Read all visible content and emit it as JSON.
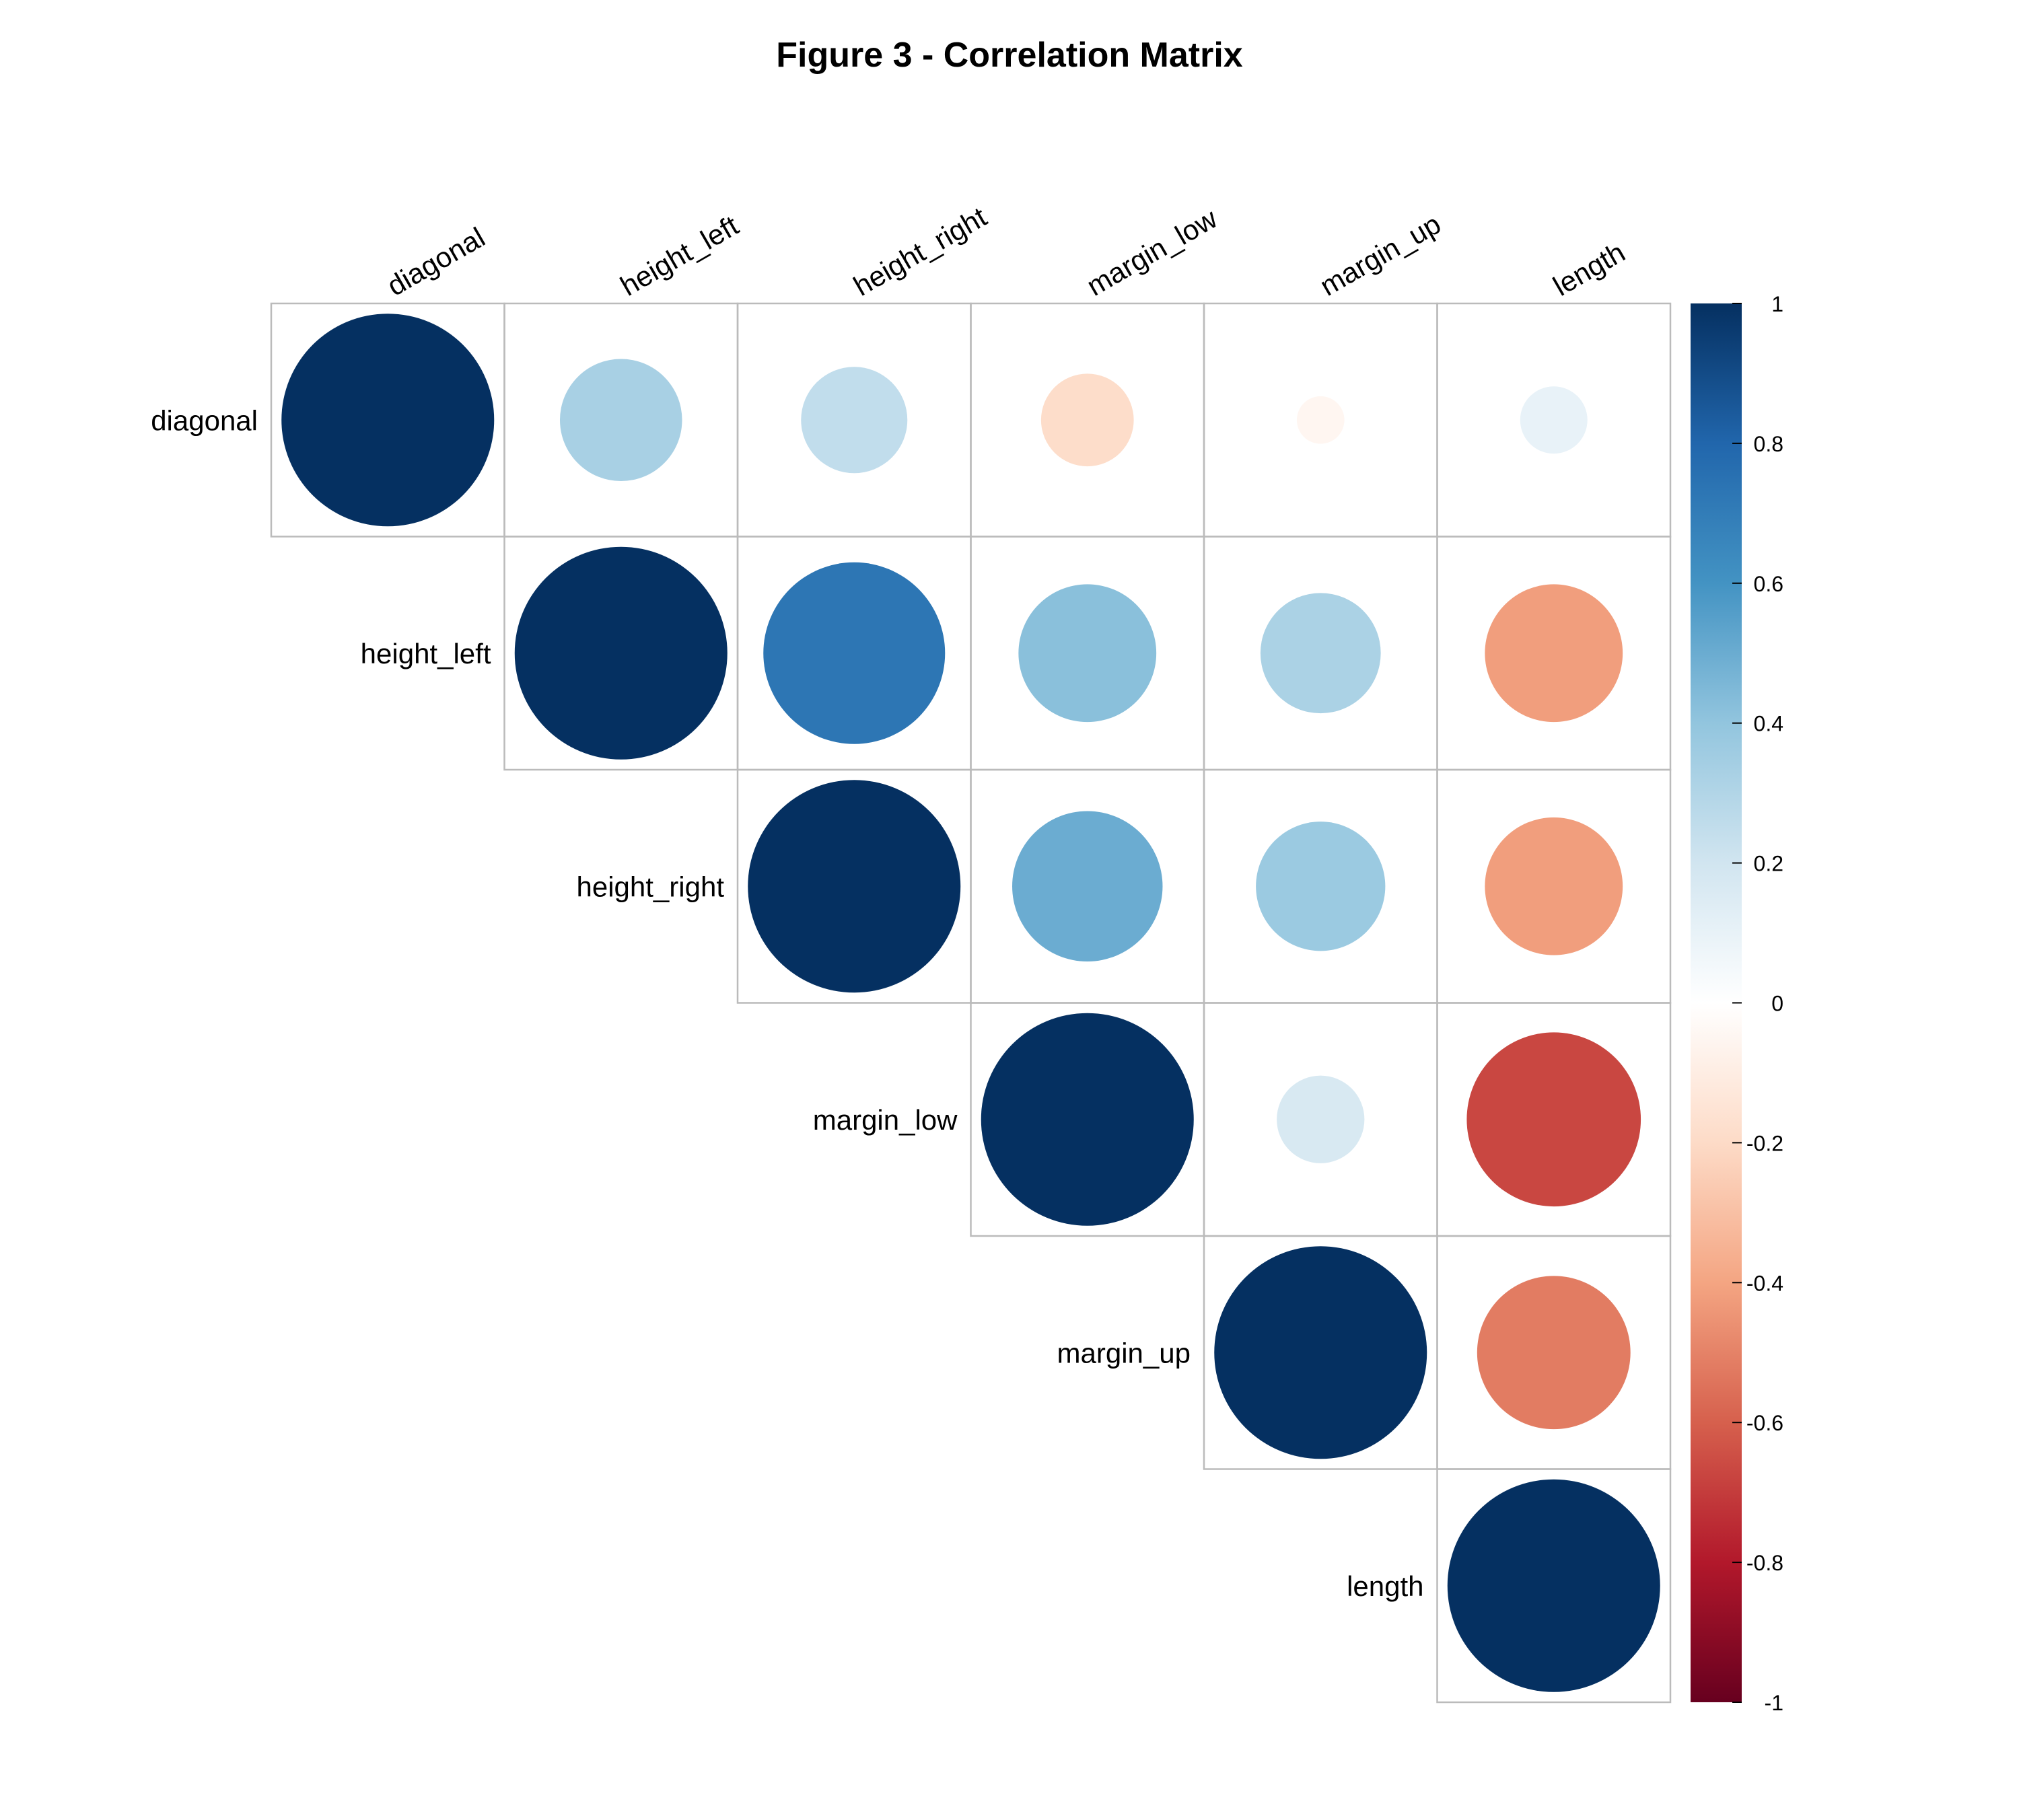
{
  "chart_data": {
    "type": "heatmap",
    "title": "Figure 3 - Correlation Matrix",
    "variables": [
      "diagonal",
      "height_left",
      "height_right",
      "margin_low",
      "margin_up",
      "length"
    ],
    "matrix_shape": "upper-triangle",
    "marker": "circle",
    "values": [
      [
        1.0,
        0.33,
        0.25,
        -0.19,
        -0.05,
        0.1
      ],
      [
        0.33,
        1.0,
        0.73,
        0.42,
        0.32,
        -0.42
      ],
      [
        0.25,
        0.73,
        1.0,
        0.5,
        0.37,
        -0.42
      ],
      [
        -0.19,
        0.42,
        0.5,
        1.0,
        0.17,
        -0.67
      ],
      [
        -0.05,
        0.32,
        0.37,
        0.17,
        1.0,
        -0.52
      ],
      [
        0.1,
        -0.42,
        -0.42,
        -0.67,
        -0.52,
        1.0
      ]
    ],
    "colorbar": {
      "range": [
        -1,
        1
      ],
      "ticks": [
        "1",
        "0.8",
        "0.6",
        "0.4",
        "0.2",
        "0",
        "-0.2",
        "-0.4",
        "-0.6",
        "-0.8",
        "-1"
      ],
      "tick_values": [
        1,
        0.8,
        0.6,
        0.4,
        0.2,
        0,
        -0.2,
        -0.4,
        -0.6,
        -0.8,
        -1
      ],
      "colors": [
        "#67001f",
        "#b2182b",
        "#d6604d",
        "#f4a582",
        "#fddbc7",
        "#ffffff",
        "#d1e5f0",
        "#92c5de",
        "#4393c3",
        "#2166ac",
        "#053061"
      ]
    },
    "grid_color": "#bbbbbb"
  }
}
